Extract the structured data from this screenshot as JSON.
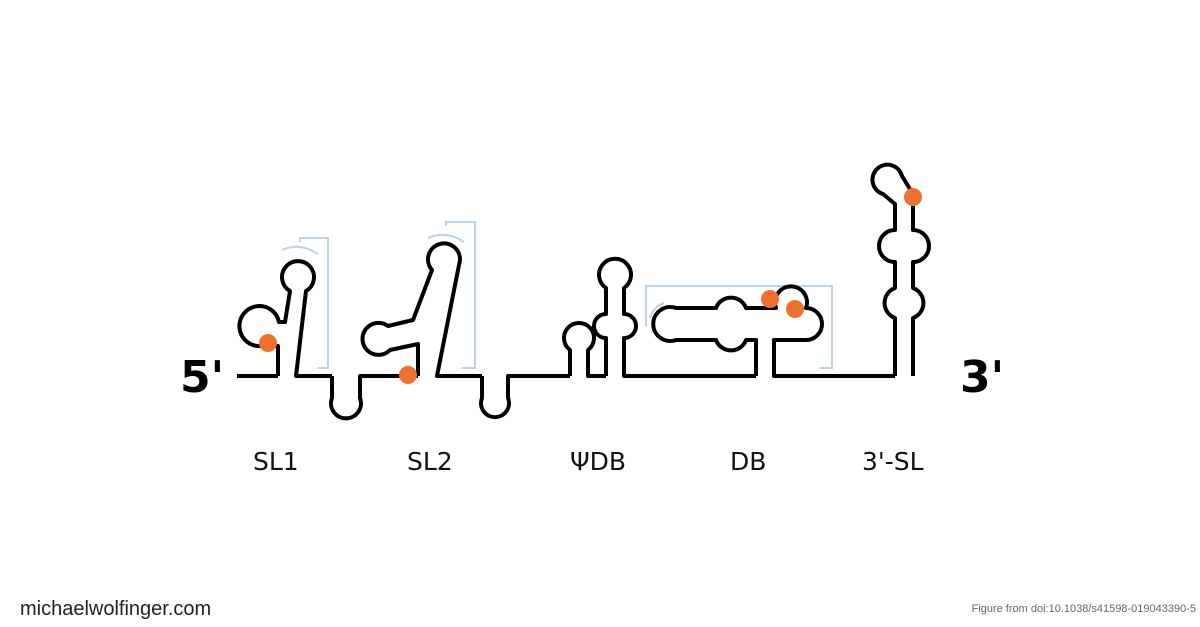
{
  "diagram": {
    "five_prime": "5'",
    "three_prime": "3'",
    "elements": [
      {
        "id": "sl1",
        "label": "SL1"
      },
      {
        "id": "sl2",
        "label": "SL2"
      },
      {
        "id": "psidb",
        "label": "ΨDB"
      },
      {
        "id": "db",
        "label": "DB"
      },
      {
        "id": "sl3",
        "label": "3'-SL"
      }
    ],
    "colors": {
      "strand": "#000000",
      "marker": "#f07030",
      "bracket": "#bcd3e3"
    }
  },
  "footer": {
    "site": "michaelwolfinger.com",
    "source": "Figure from doi:10.1038/s41598-019043390-5"
  }
}
